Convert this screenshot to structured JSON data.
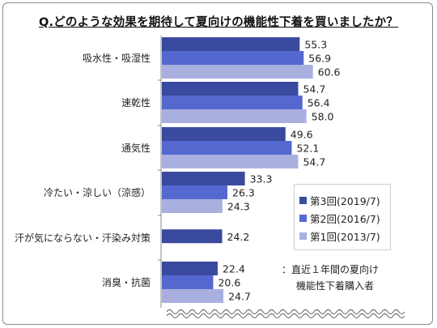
{
  "title": "Q.どのような効果を期待して夏向けの機能性下着を買いましたか？",
  "chart_data": {
    "type": "bar",
    "orientation": "horizontal",
    "categories": [
      "吸水性・吸湿性",
      "速乾性",
      "通気性",
      "冷たい・涼しい（涼感）",
      "汗が気にならない・汗染み対策",
      "消臭・抗菌"
    ],
    "series": [
      {
        "name": "第3回(2019/7)",
        "color": "#3a4a9e",
        "values": [
          55.3,
          54.7,
          49.6,
          33.3,
          24.2,
          22.4
        ]
      },
      {
        "name": "第2回(2016/7)",
        "color": "#5568cf",
        "values": [
          56.9,
          56.4,
          52.1,
          26.3,
          null,
          20.6
        ]
      },
      {
        "name": "第1回(2013/7)",
        "color": "#a9b0df",
        "values": [
          60.6,
          58.0,
          54.7,
          24.3,
          null,
          24.7
        ]
      }
    ],
    "value_labels": [
      [
        "55.3",
        "56.9",
        "60.6"
      ],
      [
        "54.7",
        "56.4",
        "58.0"
      ],
      [
        "49.6",
        "52.1",
        "54.7"
      ],
      [
        "33.3",
        "26.3",
        "24.3"
      ],
      [
        "24.2"
      ],
      [
        "22.4",
        "20.6",
        "24.7"
      ]
    ],
    "legend_position": "right",
    "grid": false,
    "xlim": [
      0,
      100
    ]
  },
  "note": {
    "line1": "：直近１年間の夏向け",
    "line2": "機能性下着購入者"
  }
}
